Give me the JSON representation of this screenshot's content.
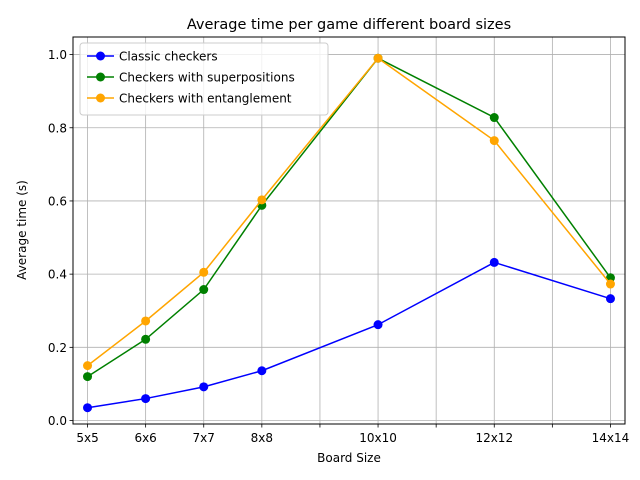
{
  "chart_data": {
    "type": "line",
    "title": "Average time per game different board sizes",
    "xlabel": "Board Size",
    "ylabel": "Average time (s)",
    "x": [
      5,
      6,
      7,
      8,
      9,
      10,
      11,
      12,
      13,
      14
    ],
    "xtick_labels": [
      "5x5",
      "6x6",
      "7x7",
      "8x8",
      "",
      "10x10",
      "",
      "12x12",
      "",
      "14x14"
    ],
    "xlim": [
      4.75,
      14.25
    ],
    "ylim": [
      -0.0095,
      1.048
    ],
    "yticks": [
      0.0,
      0.2,
      0.4,
      0.6,
      0.8,
      1.0
    ],
    "ytick_labels": [
      "0.0",
      "0.2",
      "0.4",
      "0.6",
      "0.8",
      "1.0"
    ],
    "grid": true,
    "legend_position": "top-left",
    "series": [
      {
        "name": "Classic checkers",
        "color": "#0000ff",
        "x": [
          5,
          6,
          7,
          8,
          10,
          12,
          14
        ],
        "values": [
          0.035,
          0.06,
          0.092,
          0.136,
          0.262,
          0.432,
          0.333
        ]
      },
      {
        "name": "Checkers with superpositions",
        "color": "#008000",
        "x": [
          5,
          6,
          7,
          8,
          10,
          12,
          14
        ],
        "values": [
          0.12,
          0.222,
          0.358,
          0.588,
          0.99,
          0.828,
          0.39
        ]
      },
      {
        "name": "Checkers with entanglement",
        "color": "#ffa500",
        "x": [
          5,
          6,
          7,
          8,
          10,
          12,
          14
        ],
        "values": [
          0.15,
          0.272,
          0.405,
          0.603,
          0.99,
          0.765,
          0.373
        ]
      }
    ]
  }
}
